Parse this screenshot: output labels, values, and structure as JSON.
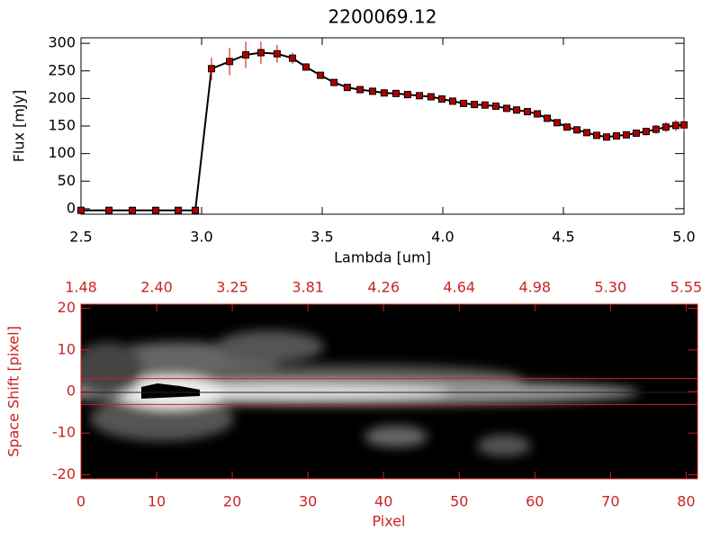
{
  "chart_data": [
    {
      "type": "line",
      "title": "2200069.12",
      "xlabel": "Lambda [um]",
      "ylabel": "Flux [mJy]",
      "color": "#000000",
      "marker_color": "#b00000",
      "error_color": "#cc0000",
      "x": [
        2.5,
        2.616,
        2.713,
        2.81,
        2.903,
        2.974,
        3.041,
        3.116,
        3.183,
        3.246,
        3.313,
        3.377,
        3.433,
        3.493,
        3.549,
        3.604,
        3.657,
        3.709,
        3.757,
        3.806,
        3.854,
        3.903,
        3.951,
        3.996,
        4.041,
        4.086,
        4.131,
        4.175,
        4.22,
        4.265,
        4.306,
        4.351,
        4.392,
        4.433,
        4.474,
        4.515,
        4.556,
        4.597,
        4.638,
        4.679,
        4.72,
        4.761,
        4.802,
        4.843,
        4.884,
        4.925,
        4.966,
        5.0
      ],
      "values": [
        -3,
        -3,
        -3,
        -3,
        -3,
        -3,
        254,
        267,
        279,
        283,
        281,
        273,
        257,
        242,
        229,
        220,
        216,
        213,
        210,
        209,
        207,
        205,
        203,
        199,
        195,
        191,
        189,
        188,
        186,
        182,
        179,
        176,
        172,
        164,
        156,
        148,
        143,
        138,
        133,
        130,
        132,
        134,
        137,
        140,
        144,
        148,
        151,
        152
      ],
      "errors": [
        2,
        2,
        2,
        2,
        2,
        2,
        20,
        25,
        24,
        20,
        16,
        10,
        4,
        3,
        3,
        3,
        3,
        3,
        3,
        3,
        3,
        3,
        3,
        3,
        3,
        3,
        3,
        3,
        3,
        3,
        3,
        3,
        3,
        3,
        3,
        3,
        3,
        3,
        3,
        3,
        4,
        5,
        6,
        7,
        8,
        9,
        10,
        12
      ],
      "xlim": [
        2.5,
        5.0
      ],
      "ylim": [
        -10,
        310
      ],
      "xticks": [
        2.5,
        {
          "value": 3,
          "label": "3.0"
        },
        3.5,
        {
          "value": 4,
          "label": "4.0"
        },
        4.5,
        {
          "value": 5,
          "label": "5.0"
        }
      ],
      "yticks": [
        0,
        50,
        100,
        150,
        200,
        250,
        300
      ]
    },
    {
      "type": "image",
      "xlabel": "Pixel",
      "ylabel": "Space Shift [pixel]",
      "axis_color": "#cc2222",
      "xlim": [
        0,
        81.5
      ],
      "ylim": [
        -21,
        21
      ],
      "xticks": [
        0,
        10,
        20,
        30,
        40,
        50,
        60,
        70,
        80
      ],
      "yticks": [
        -20,
        -10,
        0,
        10,
        20
      ],
      "top_xticks": [
        {
          "value": 0,
          "label": "1.48"
        },
        {
          "value": 10,
          "label": "2.40"
        },
        {
          "value": 20,
          "label": "3.25"
        },
        {
          "value": 30,
          "label": "3.81"
        },
        {
          "value": 40,
          "label": "4.26"
        },
        {
          "value": 50,
          "label": "4.64"
        },
        {
          "value": 60,
          "label": "4.98"
        },
        {
          "value": 70,
          "label": "5.30"
        },
        {
          "value": 80,
          "label": "5.55"
        }
      ],
      "aperture": [
        -3.1,
        3.1
      ]
    }
  ]
}
